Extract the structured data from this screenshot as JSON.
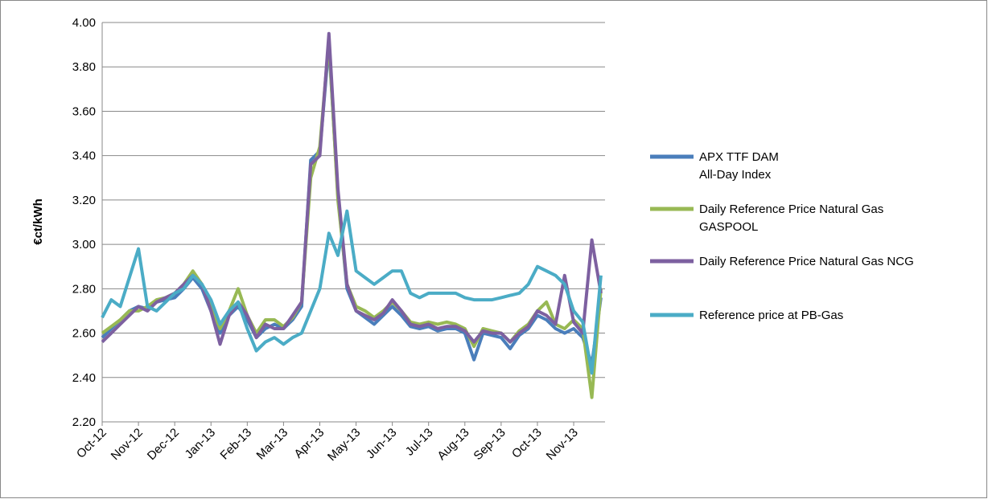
{
  "chart_data": {
    "type": "line",
    "y_label": "€ct/kWh",
    "categories": [
      "Oct-12",
      null,
      null,
      null,
      "Nov-12",
      null,
      null,
      null,
      "Dec-12",
      null,
      null,
      null,
      "Jan-13",
      null,
      null,
      null,
      "Feb-13",
      null,
      null,
      null,
      "Mar-13",
      null,
      null,
      null,
      "Apr-13",
      null,
      null,
      null,
      "May-13",
      null,
      null,
      null,
      "Jun-13",
      null,
      null,
      null,
      "Jul-13",
      null,
      null,
      null,
      "Aug-13",
      null,
      null,
      null,
      "Sep-13",
      null,
      null,
      null,
      "Oct-13",
      null,
      null,
      null,
      "Nov-13",
      null,
      null,
      null
    ],
    "series": [
      {
        "name": "APX TTF DAM\nAll-Day Index",
        "color": "#4a7ebb",
        "values": [
          2.58,
          2.62,
          2.66,
          2.7,
          2.72,
          2.71,
          2.74,
          2.75,
          2.76,
          2.8,
          2.85,
          2.8,
          2.7,
          2.6,
          2.68,
          2.72,
          2.66,
          2.58,
          2.62,
          2.64,
          2.62,
          2.66,
          2.72,
          3.38,
          3.42,
          3.9,
          3.22,
          2.8,
          2.7,
          2.67,
          2.64,
          2.68,
          2.72,
          2.68,
          2.63,
          2.62,
          2.63,
          2.61,
          2.62,
          2.62,
          2.6,
          2.48,
          2.6,
          2.59,
          2.58,
          2.53,
          2.59,
          2.62,
          2.68,
          2.66,
          2.62,
          2.6,
          2.62,
          2.58,
          2.46,
          2.76
        ]
      },
      {
        "name": "Daily Reference Price Natural Gas\nGASPOOL",
        "color": "#98b954",
        "values": [
          2.6,
          2.63,
          2.66,
          2.7,
          2.7,
          2.72,
          2.75,
          2.76,
          2.78,
          2.82,
          2.88,
          2.82,
          2.72,
          2.62,
          2.7,
          2.8,
          2.68,
          2.6,
          2.66,
          2.66,
          2.63,
          2.67,
          2.74,
          3.3,
          3.44,
          3.92,
          3.2,
          2.82,
          2.72,
          2.7,
          2.67,
          2.7,
          2.74,
          2.7,
          2.65,
          2.64,
          2.65,
          2.64,
          2.65,
          2.64,
          2.62,
          2.54,
          2.62,
          2.61,
          2.6,
          2.56,
          2.61,
          2.64,
          2.7,
          2.74,
          2.64,
          2.62,
          2.66,
          2.62,
          2.31,
          2.8
        ]
      },
      {
        "name": "Daily Reference Price Natural Gas NCG",
        "color": "#7d60a0",
        "values": [
          2.56,
          2.6,
          2.64,
          2.68,
          2.72,
          2.7,
          2.74,
          2.76,
          2.78,
          2.82,
          2.86,
          2.82,
          2.7,
          2.55,
          2.68,
          2.74,
          2.68,
          2.58,
          2.64,
          2.62,
          2.62,
          2.68,
          2.74,
          3.36,
          3.4,
          3.95,
          3.25,
          2.82,
          2.7,
          2.68,
          2.66,
          2.69,
          2.75,
          2.7,
          2.64,
          2.63,
          2.64,
          2.62,
          2.63,
          2.63,
          2.61,
          2.56,
          2.61,
          2.6,
          2.6,
          2.56,
          2.6,
          2.63,
          2.7,
          2.68,
          2.64,
          2.86,
          2.65,
          2.6,
          3.02,
          2.78
        ]
      },
      {
        "name": "Reference price at PB-Gas",
        "color": "#4bacc6",
        "values": [
          2.67,
          2.75,
          2.72,
          2.85,
          2.98,
          2.72,
          2.7,
          2.74,
          2.78,
          2.8,
          2.86,
          2.82,
          2.75,
          2.64,
          2.7,
          2.74,
          2.62,
          2.52,
          2.56,
          2.58,
          2.55,
          2.58,
          2.6,
          2.7,
          2.8,
          3.05,
          2.95,
          3.15,
          2.88,
          2.85,
          2.82,
          2.85,
          2.88,
          2.88,
          2.78,
          2.76,
          2.78,
          2.78,
          2.78,
          2.78,
          2.76,
          2.75,
          2.75,
          2.75,
          2.76,
          2.77,
          2.78,
          2.82,
          2.9,
          2.88,
          2.86,
          2.82,
          2.7,
          2.65,
          2.42,
          2.86
        ]
      }
    ],
    "ylim": [
      2.2,
      4.0
    ],
    "yticks": [
      {
        "value": 2.2,
        "label": "2.20"
      },
      {
        "value": 2.4,
        "label": "2.40"
      },
      {
        "value": 2.6,
        "label": "2.60"
      },
      {
        "value": 2.8,
        "label": "2.80"
      },
      {
        "value": 3.0,
        "label": "3.00"
      },
      {
        "value": 3.2,
        "label": "3.20"
      },
      {
        "value": 3.4,
        "label": "3.40"
      },
      {
        "value": 3.6,
        "label": "3.60"
      },
      {
        "value": 3.8,
        "label": "3.80"
      },
      {
        "value": 4.0,
        "label": "4.00"
      }
    ],
    "grid": true,
    "legend": "right"
  }
}
